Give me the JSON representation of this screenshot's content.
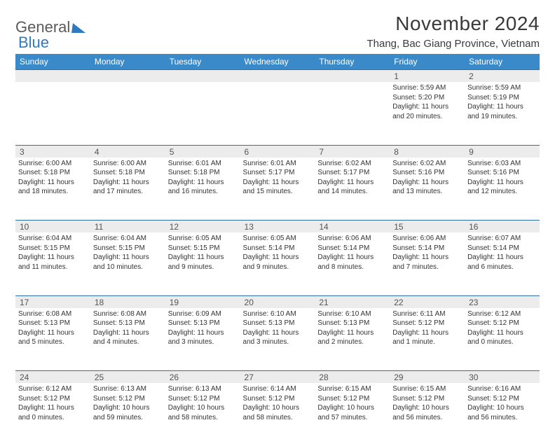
{
  "brand": {
    "word1": "General",
    "word2": "Blue"
  },
  "title": "November 2024",
  "location": "Thang, Bac Giang Province, Vietnam",
  "colors": {
    "header_bg": "#3a8ac9",
    "header_text": "#ffffff",
    "divider": "#2f6fa8",
    "stripe": "#ececec",
    "text": "#333333",
    "logo_gray": "#5a5a5a",
    "logo_blue": "#2f7bbf"
  },
  "day_headers": [
    "Sunday",
    "Monday",
    "Tuesday",
    "Wednesday",
    "Thursday",
    "Friday",
    "Saturday"
  ],
  "weeks": [
    [
      {
        "n": "",
        "lines": []
      },
      {
        "n": "",
        "lines": []
      },
      {
        "n": "",
        "lines": []
      },
      {
        "n": "",
        "lines": []
      },
      {
        "n": "",
        "lines": []
      },
      {
        "n": "1",
        "lines": [
          "Sunrise: 5:59 AM",
          "Sunset: 5:20 PM",
          "Daylight: 11 hours",
          "and 20 minutes."
        ]
      },
      {
        "n": "2",
        "lines": [
          "Sunrise: 5:59 AM",
          "Sunset: 5:19 PM",
          "Daylight: 11 hours",
          "and 19 minutes."
        ]
      }
    ],
    [
      {
        "n": "3",
        "lines": [
          "Sunrise: 6:00 AM",
          "Sunset: 5:18 PM",
          "Daylight: 11 hours",
          "and 18 minutes."
        ]
      },
      {
        "n": "4",
        "lines": [
          "Sunrise: 6:00 AM",
          "Sunset: 5:18 PM",
          "Daylight: 11 hours",
          "and 17 minutes."
        ]
      },
      {
        "n": "5",
        "lines": [
          "Sunrise: 6:01 AM",
          "Sunset: 5:18 PM",
          "Daylight: 11 hours",
          "and 16 minutes."
        ]
      },
      {
        "n": "6",
        "lines": [
          "Sunrise: 6:01 AM",
          "Sunset: 5:17 PM",
          "Daylight: 11 hours",
          "and 15 minutes."
        ]
      },
      {
        "n": "7",
        "lines": [
          "Sunrise: 6:02 AM",
          "Sunset: 5:17 PM",
          "Daylight: 11 hours",
          "and 14 minutes."
        ]
      },
      {
        "n": "8",
        "lines": [
          "Sunrise: 6:02 AM",
          "Sunset: 5:16 PM",
          "Daylight: 11 hours",
          "and 13 minutes."
        ]
      },
      {
        "n": "9",
        "lines": [
          "Sunrise: 6:03 AM",
          "Sunset: 5:16 PM",
          "Daylight: 11 hours",
          "and 12 minutes."
        ]
      }
    ],
    [
      {
        "n": "10",
        "lines": [
          "Sunrise: 6:04 AM",
          "Sunset: 5:15 PM",
          "Daylight: 11 hours",
          "and 11 minutes."
        ]
      },
      {
        "n": "11",
        "lines": [
          "Sunrise: 6:04 AM",
          "Sunset: 5:15 PM",
          "Daylight: 11 hours",
          "and 10 minutes."
        ]
      },
      {
        "n": "12",
        "lines": [
          "Sunrise: 6:05 AM",
          "Sunset: 5:15 PM",
          "Daylight: 11 hours",
          "and 9 minutes."
        ]
      },
      {
        "n": "13",
        "lines": [
          "Sunrise: 6:05 AM",
          "Sunset: 5:14 PM",
          "Daylight: 11 hours",
          "and 9 minutes."
        ]
      },
      {
        "n": "14",
        "lines": [
          "Sunrise: 6:06 AM",
          "Sunset: 5:14 PM",
          "Daylight: 11 hours",
          "and 8 minutes."
        ]
      },
      {
        "n": "15",
        "lines": [
          "Sunrise: 6:06 AM",
          "Sunset: 5:14 PM",
          "Daylight: 11 hours",
          "and 7 minutes."
        ]
      },
      {
        "n": "16",
        "lines": [
          "Sunrise: 6:07 AM",
          "Sunset: 5:14 PM",
          "Daylight: 11 hours",
          "and 6 minutes."
        ]
      }
    ],
    [
      {
        "n": "17",
        "lines": [
          "Sunrise: 6:08 AM",
          "Sunset: 5:13 PM",
          "Daylight: 11 hours",
          "and 5 minutes."
        ]
      },
      {
        "n": "18",
        "lines": [
          "Sunrise: 6:08 AM",
          "Sunset: 5:13 PM",
          "Daylight: 11 hours",
          "and 4 minutes."
        ]
      },
      {
        "n": "19",
        "lines": [
          "Sunrise: 6:09 AM",
          "Sunset: 5:13 PM",
          "Daylight: 11 hours",
          "and 3 minutes."
        ]
      },
      {
        "n": "20",
        "lines": [
          "Sunrise: 6:10 AM",
          "Sunset: 5:13 PM",
          "Daylight: 11 hours",
          "and 3 minutes."
        ]
      },
      {
        "n": "21",
        "lines": [
          "Sunrise: 6:10 AM",
          "Sunset: 5:13 PM",
          "Daylight: 11 hours",
          "and 2 minutes."
        ]
      },
      {
        "n": "22",
        "lines": [
          "Sunrise: 6:11 AM",
          "Sunset: 5:12 PM",
          "Daylight: 11 hours",
          "and 1 minute."
        ]
      },
      {
        "n": "23",
        "lines": [
          "Sunrise: 6:12 AM",
          "Sunset: 5:12 PM",
          "Daylight: 11 hours",
          "and 0 minutes."
        ]
      }
    ],
    [
      {
        "n": "24",
        "lines": [
          "Sunrise: 6:12 AM",
          "Sunset: 5:12 PM",
          "Daylight: 11 hours",
          "and 0 minutes."
        ]
      },
      {
        "n": "25",
        "lines": [
          "Sunrise: 6:13 AM",
          "Sunset: 5:12 PM",
          "Daylight: 10 hours",
          "and 59 minutes."
        ]
      },
      {
        "n": "26",
        "lines": [
          "Sunrise: 6:13 AM",
          "Sunset: 5:12 PM",
          "Daylight: 10 hours",
          "and 58 minutes."
        ]
      },
      {
        "n": "27",
        "lines": [
          "Sunrise: 6:14 AM",
          "Sunset: 5:12 PM",
          "Daylight: 10 hours",
          "and 58 minutes."
        ]
      },
      {
        "n": "28",
        "lines": [
          "Sunrise: 6:15 AM",
          "Sunset: 5:12 PM",
          "Daylight: 10 hours",
          "and 57 minutes."
        ]
      },
      {
        "n": "29",
        "lines": [
          "Sunrise: 6:15 AM",
          "Sunset: 5:12 PM",
          "Daylight: 10 hours",
          "and 56 minutes."
        ]
      },
      {
        "n": "30",
        "lines": [
          "Sunrise: 6:16 AM",
          "Sunset: 5:12 PM",
          "Daylight: 10 hours",
          "and 56 minutes."
        ]
      }
    ]
  ]
}
